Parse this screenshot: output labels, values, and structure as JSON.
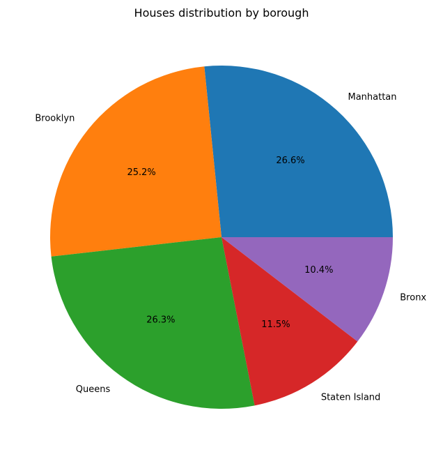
{
  "chart_data": {
    "type": "pie",
    "title": "Houses distribution by borough",
    "slices": [
      {
        "label": "Manhattan",
        "percent": 26.6,
        "percent_label": "26.6%",
        "color": "#1f77b4"
      },
      {
        "label": "Brooklyn",
        "percent": 25.2,
        "percent_label": "25.2%",
        "color": "#ff7f0e"
      },
      {
        "label": "Queens",
        "percent": 26.3,
        "percent_label": "26.3%",
        "color": "#2ca02c"
      },
      {
        "label": "Staten Island",
        "percent": 11.5,
        "percent_label": "11.5%",
        "color": "#d62728"
      },
      {
        "label": "Bronx",
        "percent": 10.4,
        "percent_label": "10.4%",
        "color": "#9467bd"
      }
    ],
    "start_angle": 0,
    "direction": "counterclockwise",
    "legend": "none"
  }
}
